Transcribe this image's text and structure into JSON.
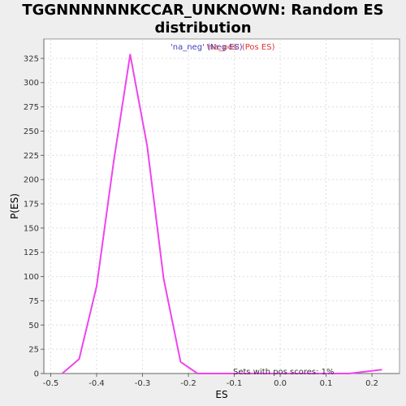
{
  "chart_data": {
    "type": "line",
    "title_line1": "TGGNNNNNNKCCAR_UNKNOWN: Random ES",
    "title_line2": "distribution",
    "xlabel": "ES",
    "ylabel": "P(ES)",
    "xlim": [
      -0.515,
      0.26
    ],
    "ylim": [
      0,
      345
    ],
    "x_ticks": [
      -0.5,
      -0.4,
      -0.3,
      -0.2,
      -0.1,
      0.0,
      0.1,
      0.2
    ],
    "x_tick_labels": [
      "-0.5",
      "-0.4",
      "-0.3",
      "-0.2",
      "-0.1",
      "0.0",
      "0.1",
      "0.2"
    ],
    "y_ticks": [
      0,
      25,
      50,
      75,
      100,
      125,
      150,
      175,
      200,
      225,
      250,
      275,
      300,
      325
    ],
    "y_tick_labels": [
      "0",
      "25",
      "50",
      "75",
      "100",
      "125",
      "150",
      "175",
      "200",
      "225",
      "250",
      "275",
      "300",
      "325"
    ],
    "grid": true,
    "legend": {
      "placement": "top-center",
      "entries": [
        {
          "label": "'na_neg' (Neg ES)",
          "color": "#4040c0"
        },
        {
          "label": "'na_pos' (Pos ES)",
          "color": "#e03030"
        }
      ]
    },
    "annotation": "Sets with pos scores: 1%",
    "series": [
      {
        "color": "#ee44ee",
        "x": [
          -0.475,
          -0.438,
          -0.4,
          -0.363,
          -0.327,
          -0.29,
          -0.254,
          -0.217,
          -0.18,
          -0.144,
          -0.107,
          -0.07,
          0.0,
          0.1,
          0.15,
          0.186,
          0.222
        ],
        "y": [
          0,
          15,
          90,
          218,
          329,
          235,
          98,
          12,
          0,
          0,
          0,
          0,
          0,
          0,
          0,
          2,
          4
        ]
      }
    ]
  }
}
